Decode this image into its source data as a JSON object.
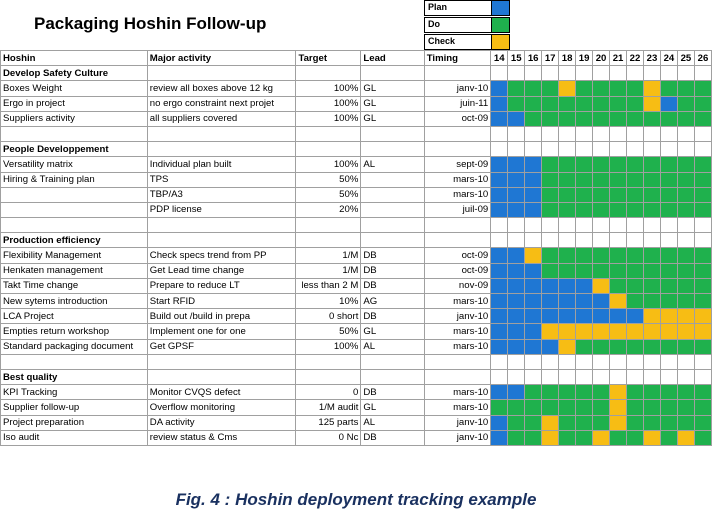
{
  "title": "Packaging Hoshin Follow-up",
  "legend": [
    {
      "label": "Plan",
      "color": "#1f77d3"
    },
    {
      "label": "Do",
      "color": "#1fb14d"
    },
    {
      "label": "Check",
      "color": "#f7bd14"
    }
  ],
  "headers": {
    "hoshin": "Hoshin",
    "activity": "Major activity",
    "target": "Target",
    "lead": "Lead",
    "timing": "Timing"
  },
  "weeks": [
    "14",
    "15",
    "16",
    "17",
    "18",
    "19",
    "20",
    "21",
    "22",
    "23",
    "24",
    "25",
    "26"
  ],
  "rows": [
    {
      "kind": "cat",
      "hoshin": "Develop Safety Culture"
    },
    {
      "kind": "data",
      "hoshin": "Boxes Weight",
      "activity": "review all boxes above 12 kg",
      "target": "100%",
      "lead": "GL",
      "timing": "janv-10",
      "cells": "PDDDCDDDDCDDD"
    },
    {
      "kind": "data",
      "hoshin": "Ergo in project",
      "activity": "no ergo constraint next projet",
      "target": "100%",
      "lead": "GL",
      "timing": "juin-11",
      "cells": "PDDDDDDDDCPDD"
    },
    {
      "kind": "data",
      "hoshin": "Suppliers activity",
      "activity": "all suppliers covered",
      "target": "100%",
      "lead": "GL",
      "timing": "oct-09",
      "cells": "PPDDDDDDDDDDD"
    },
    {
      "kind": "blank"
    },
    {
      "kind": "cat",
      "hoshin": "People Developpement"
    },
    {
      "kind": "data",
      "hoshin": "Versatility matrix",
      "activity": "Individual plan built",
      "target": "100%",
      "lead": "AL",
      "timing": "sept-09",
      "cells": "PPPDDDDDDDDDD"
    },
    {
      "kind": "data",
      "hoshin": "Hiring & Training plan",
      "activity": "TPS",
      "target": "50%",
      "lead": "",
      "timing": "mars-10",
      "cells": "PPPDDDDDDDDDD"
    },
    {
      "kind": "data",
      "hoshin": "",
      "activity": "TBP/A3",
      "target": "50%",
      "lead": "",
      "timing": "mars-10",
      "cells": "PPPDDDDDDDDDD"
    },
    {
      "kind": "data",
      "hoshin": "",
      "activity": "PDP license",
      "target": "20%",
      "lead": "",
      "timing": "juil-09",
      "cells": "PPPDDDDDDDDDD"
    },
    {
      "kind": "blank"
    },
    {
      "kind": "cat",
      "hoshin": "Production efficiency"
    },
    {
      "kind": "data",
      "hoshin": "Flexibility Management",
      "activity": "Check specs trend from PP",
      "target": "1/M",
      "lead": "DB",
      "timing": "oct-09",
      "cells": "PPCDDDDDDDDDD"
    },
    {
      "kind": "data",
      "hoshin": "Henkaten management",
      "activity": "Get Lead time change",
      "target": "1/M",
      "lead": "DB",
      "timing": "oct-09",
      "cells": "PPPDDDDDDDDDD"
    },
    {
      "kind": "data",
      "hoshin": "Takt Time change",
      "activity": "Prepare to reduce LT",
      "target": "less than 2 M",
      "lead": "DB",
      "timing": "nov-09",
      "cells": "PPPPPPCDDDDDD"
    },
    {
      "kind": "data",
      "hoshin": "New sytems introduction",
      "activity": "Start RFID",
      "target": "10%",
      "lead": "AG",
      "timing": "mars-10",
      "cells": "PPPPPPPCDDDDD"
    },
    {
      "kind": "data",
      "hoshin": "LCA Project",
      "activity": "Build out /build in prepa",
      "target": "0 short",
      "lead": "DB",
      "timing": "janv-10",
      "cells": "PPPPPPPPPCCCC"
    },
    {
      "kind": "data",
      "hoshin": "Empties return workshop",
      "activity": "Implement one for one",
      "target": "50%",
      "lead": "GL",
      "timing": "mars-10",
      "cells": "PPPCCCCCCCCCC"
    },
    {
      "kind": "data",
      "hoshin": "Standard packaging document",
      "activity": "Get GPSF",
      "target": "100%",
      "lead": "AL",
      "timing": "mars-10",
      "cells": "PPPPCDDDDDDDD"
    },
    {
      "kind": "blank"
    },
    {
      "kind": "cat",
      "hoshin": "Best quality"
    },
    {
      "kind": "data",
      "hoshin": "KPI Tracking",
      "activity": "Monitor CVQS defect",
      "target": "0",
      "lead": "DB",
      "timing": "mars-10",
      "cells": "PPDDDDDCDDDDD"
    },
    {
      "kind": "data",
      "hoshin": "Supplier follow-up",
      "activity": "Overflow monitoring",
      "target": "1/M audit",
      "lead": "GL",
      "timing": "mars-10",
      "cells": "DDDDDDDCDDDDD"
    },
    {
      "kind": "data",
      "hoshin": "Project preparation",
      "activity": "DA activity",
      "target": "125 parts",
      "lead": "AL",
      "timing": "janv-10",
      "cells": "PDDCDDDCDDDDD"
    },
    {
      "kind": "data",
      "hoshin": "Iso audit",
      "activity": "review status & Cms",
      "target": "0 Nc",
      "lead": "DB",
      "timing": "janv-10",
      "cells": "PDDCDDCDDCDCD"
    }
  ],
  "caption": "Fig. 4 : Hoshin deployment tracking example"
}
